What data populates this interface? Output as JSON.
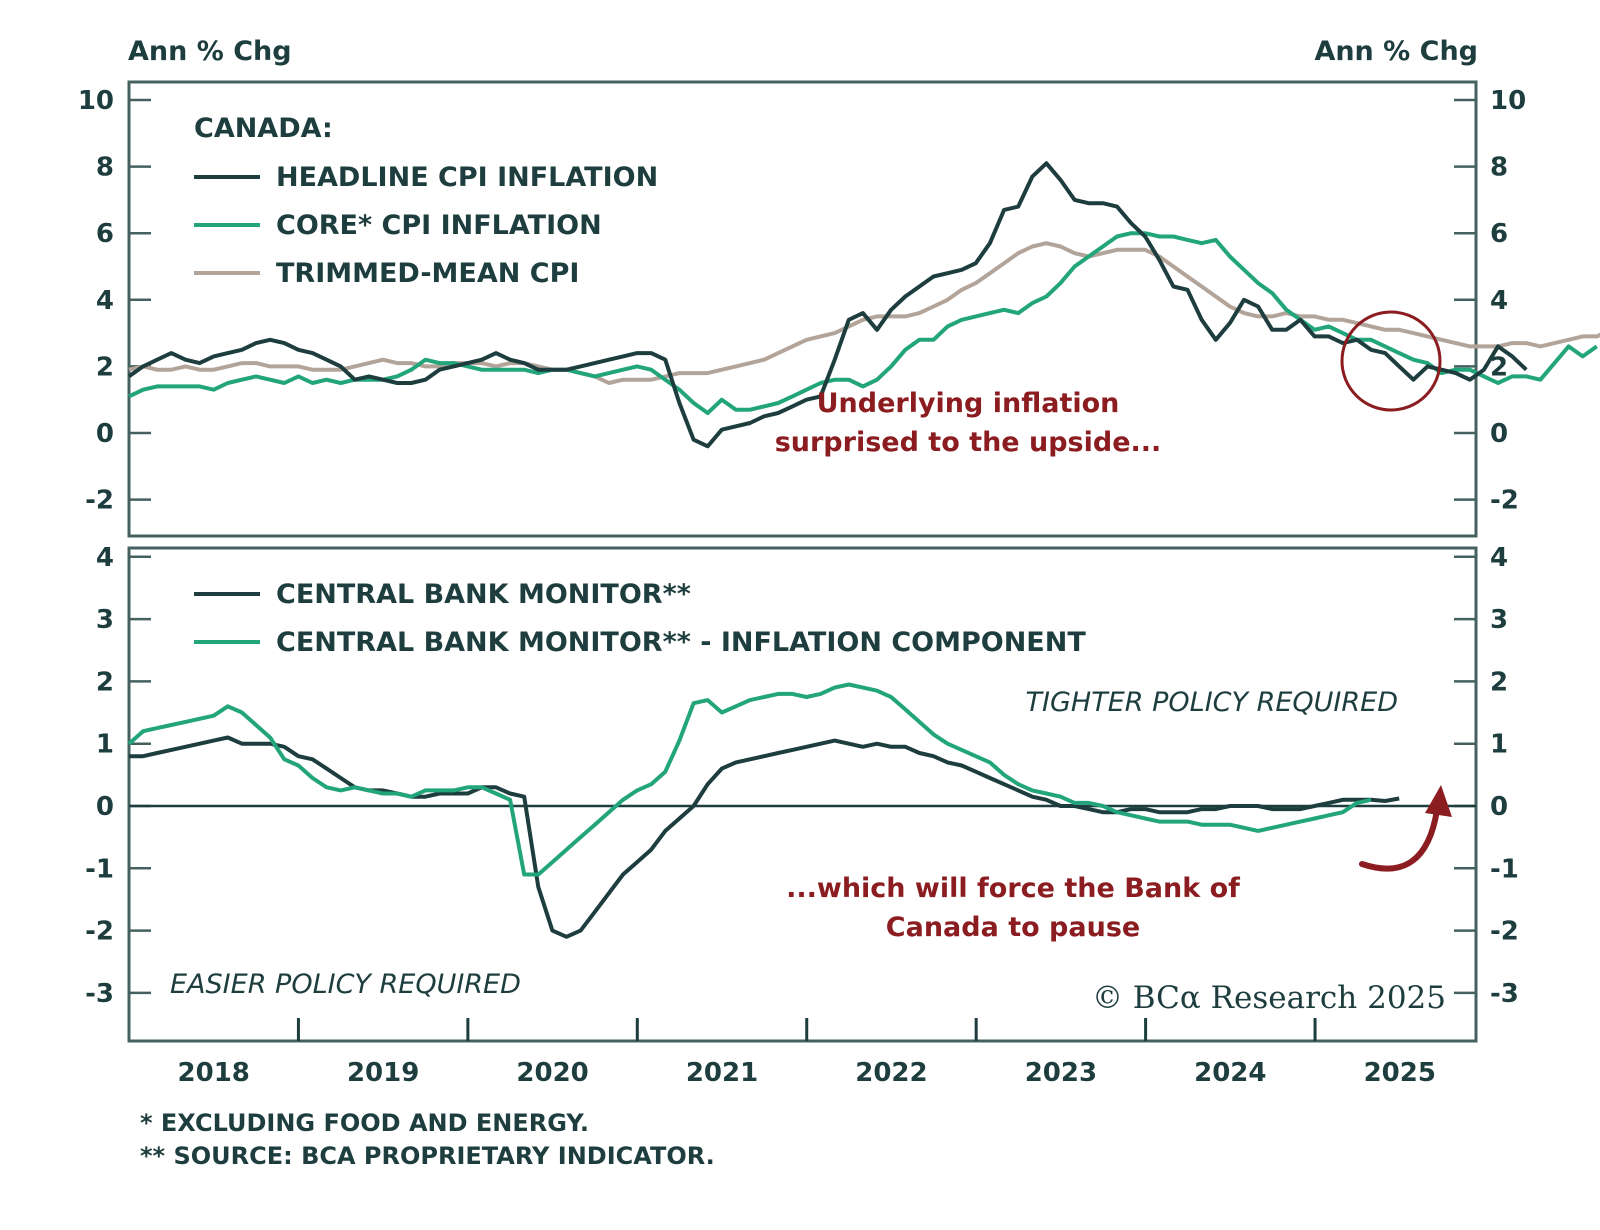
{
  "colors": {
    "headline": "#1d3d3e",
    "core": "#22a57a",
    "trimmed": "#b3a49a",
    "annotation": "#8b1c20",
    "axis": "#1d3d3e"
  },
  "chart_data": [
    {
      "type": "line",
      "panel": "top",
      "title": "CANADA:",
      "ylabel_left": "Ann % Chg",
      "ylabel_right": "Ann % Chg",
      "ylim": [
        -2.8,
        10.5
      ],
      "yticks": [
        -2,
        0,
        2,
        4,
        6,
        8,
        10
      ],
      "ytick_labels": [
        "-2",
        "0",
        "2",
        "4",
        "6",
        "8",
        "10"
      ],
      "grid": false,
      "legend_position": "top-left",
      "x_start": 2017.5,
      "x_step": 0.0833,
      "series": [
        {
          "name": "HEADLINE CPI INFLATION",
          "color_key": "headline",
          "values": [
            1.7,
            2.0,
            2.2,
            2.4,
            2.2,
            2.1,
            2.3,
            2.4,
            2.5,
            2.7,
            2.8,
            2.7,
            2.5,
            2.4,
            2.2,
            2.0,
            1.6,
            1.7,
            1.6,
            1.5,
            1.5,
            1.6,
            1.9,
            2.0,
            2.1,
            2.2,
            2.4,
            2.2,
            2.1,
            1.9,
            1.9,
            1.9,
            2.0,
            2.1,
            2.2,
            2.3,
            2.4,
            2.4,
            2.2,
            0.9,
            -0.2,
            -0.4,
            0.1,
            0.2,
            0.3,
            0.5,
            0.6,
            0.8,
            1.0,
            1.1,
            2.2,
            3.4,
            3.6,
            3.1,
            3.7,
            4.1,
            4.4,
            4.7,
            4.8,
            4.9,
            5.1,
            5.7,
            6.7,
            6.8,
            7.7,
            8.1,
            7.6,
            7.0,
            6.9,
            6.9,
            6.8,
            6.3,
            5.9,
            5.2,
            4.4,
            4.3,
            3.4,
            2.8,
            3.3,
            4.0,
            3.8,
            3.1,
            3.1,
            3.4,
            2.9,
            2.9,
            2.7,
            2.8,
            2.5,
            2.4,
            2.0,
            1.6,
            2.0,
            1.9,
            1.8,
            1.6,
            1.9,
            2.6,
            2.3,
            1.9
          ]
        },
        {
          "name": "CORE* CPI INFLATION",
          "color_key": "core",
          "values": [
            1.1,
            1.3,
            1.4,
            1.4,
            1.4,
            1.4,
            1.3,
            1.5,
            1.6,
            1.7,
            1.6,
            1.5,
            1.7,
            1.5,
            1.6,
            1.5,
            1.6,
            1.6,
            1.6,
            1.7,
            1.9,
            2.2,
            2.1,
            2.1,
            2.0,
            1.9,
            1.9,
            1.9,
            1.9,
            1.8,
            1.9,
            1.9,
            1.8,
            1.7,
            1.8,
            1.9,
            2.0,
            1.9,
            1.6,
            1.3,
            0.9,
            0.6,
            1.0,
            0.7,
            0.7,
            0.8,
            0.9,
            1.1,
            1.3,
            1.5,
            1.6,
            1.6,
            1.4,
            1.6,
            2.0,
            2.5,
            2.8,
            2.8,
            3.2,
            3.4,
            3.5,
            3.6,
            3.7,
            3.6,
            3.9,
            4.1,
            4.5,
            5.0,
            5.3,
            5.6,
            5.9,
            6.0,
            6.0,
            5.9,
            5.9,
            5.8,
            5.7,
            5.8,
            5.3,
            4.9,
            4.5,
            4.2,
            3.7,
            3.4,
            3.1,
            3.2,
            3.0,
            2.8,
            2.8,
            2.6,
            2.4,
            2.2,
            2.1,
            1.8,
            1.9,
            1.9,
            1.7,
            1.5,
            1.7,
            1.7,
            1.6,
            2.1,
            2.6,
            2.3,
            2.6
          ]
        },
        {
          "name": "TRIMMED-MEAN CPI",
          "color_key": "trimmed",
          "values": [
            1.9,
            2.0,
            1.9,
            1.9,
            2.0,
            1.9,
            1.9,
            2.0,
            2.1,
            2.1,
            2.0,
            2.0,
            2.0,
            1.9,
            1.9,
            1.9,
            2.0,
            2.1,
            2.2,
            2.1,
            2.1,
            2.0,
            2.0,
            2.1,
            2.1,
            2.1,
            2.0,
            2.1,
            2.1,
            2.0,
            1.9,
            1.9,
            1.8,
            1.7,
            1.5,
            1.6,
            1.6,
            1.6,
            1.7,
            1.8,
            1.8,
            1.8,
            1.9,
            2.0,
            2.1,
            2.2,
            2.4,
            2.6,
            2.8,
            2.9,
            3.0,
            3.2,
            3.4,
            3.5,
            3.5,
            3.5,
            3.6,
            3.8,
            4.0,
            4.3,
            4.5,
            4.8,
            5.1,
            5.4,
            5.6,
            5.7,
            5.6,
            5.4,
            5.3,
            5.4,
            5.5,
            5.5,
            5.5,
            5.3,
            5.0,
            4.7,
            4.4,
            4.1,
            3.8,
            3.6,
            3.5,
            3.5,
            3.6,
            3.5,
            3.5,
            3.4,
            3.4,
            3.3,
            3.2,
            3.1,
            3.1,
            3.0,
            2.9,
            2.8,
            2.7,
            2.6,
            2.6,
            2.6,
            2.7,
            2.7,
            2.6,
            2.7,
            2.8,
            2.9,
            2.9,
            3.1
          ]
        }
      ],
      "annotations": [
        {
          "text_lines": [
            "Underlying inflation",
            "surprised to the upside..."
          ],
          "color_key": "annotation"
        },
        {
          "type": "circle",
          "around": "latest values (early 2025)"
        }
      ]
    },
    {
      "type": "line",
      "panel": "bottom",
      "ylim": [
        -3.35,
        4.35
      ],
      "yticks": [
        -3,
        -2,
        -1,
        0,
        1,
        2,
        3,
        4
      ],
      "ytick_labels": [
        "-3",
        "-2",
        "-1",
        "0",
        "1",
        "2",
        "3",
        "4"
      ],
      "zero_line": true,
      "grid": false,
      "legend_position": "top-left",
      "x_start": 2017.5,
      "x_step": 0.0833,
      "xticks": [
        2018.5,
        2019.5,
        2020.5,
        2021.5,
        2022.5,
        2023.5,
        2024.5
      ],
      "xlabels": [
        "2018",
        "2019",
        "2020",
        "2021",
        "2022",
        "2023",
        "2024",
        "2025"
      ],
      "series": [
        {
          "name": "CENTRAL BANK MONITOR**",
          "color_key": "headline",
          "values": [
            0.8,
            0.8,
            0.85,
            0.9,
            0.95,
            1.0,
            1.05,
            1.1,
            1.0,
            1.0,
            1.0,
            0.95,
            0.8,
            0.75,
            0.6,
            0.45,
            0.3,
            0.25,
            0.25,
            0.2,
            0.15,
            0.15,
            0.2,
            0.2,
            0.2,
            0.3,
            0.3,
            0.2,
            0.15,
            -1.3,
            -2.0,
            -2.1,
            -2.0,
            -1.7,
            -1.4,
            -1.1,
            -0.9,
            -0.7,
            -0.4,
            -0.2,
            0.0,
            0.35,
            0.6,
            0.7,
            0.75,
            0.8,
            0.85,
            0.9,
            0.95,
            1.0,
            1.05,
            1.0,
            0.95,
            1.0,
            0.95,
            0.95,
            0.85,
            0.8,
            0.7,
            0.65,
            0.55,
            0.45,
            0.35,
            0.25,
            0.15,
            0.1,
            0.0,
            0.0,
            -0.05,
            -0.1,
            -0.1,
            -0.05,
            -0.05,
            -0.1,
            -0.1,
            -0.1,
            -0.05,
            -0.05,
            0.0,
            0.0,
            0.0,
            -0.05,
            -0.05,
            -0.05,
            0.0,
            0.05,
            0.1,
            0.1,
            0.1,
            0.08,
            0.12
          ]
        },
        {
          "name": "CENTRAL BANK MONITOR** - INFLATION COMPONENT",
          "color_key": "core",
          "values": [
            1.0,
            1.2,
            1.25,
            1.3,
            1.35,
            1.4,
            1.45,
            1.6,
            1.5,
            1.3,
            1.1,
            0.75,
            0.65,
            0.45,
            0.3,
            0.25,
            0.3,
            0.25,
            0.2,
            0.2,
            0.15,
            0.25,
            0.25,
            0.25,
            0.3,
            0.3,
            0.2,
            0.1,
            -1.1,
            -1.1,
            -0.9,
            -0.7,
            -0.5,
            -0.3,
            -0.1,
            0.1,
            0.25,
            0.35,
            0.55,
            1.05,
            1.65,
            1.7,
            1.5,
            1.6,
            1.7,
            1.75,
            1.8,
            1.8,
            1.75,
            1.8,
            1.9,
            1.95,
            1.9,
            1.85,
            1.75,
            1.55,
            1.35,
            1.15,
            1.0,
            0.9,
            0.8,
            0.7,
            0.5,
            0.35,
            0.25,
            0.2,
            0.15,
            0.05,
            0.05,
            0.0,
            -0.1,
            -0.15,
            -0.2,
            -0.25,
            -0.25,
            -0.25,
            -0.3,
            -0.3,
            -0.3,
            -0.35,
            -0.4,
            -0.35,
            -0.3,
            -0.25,
            -0.2,
            -0.15,
            -0.1,
            0.05,
            0.1
          ]
        }
      ],
      "region_labels": {
        "top": "TIGHTER POLICY REQUIRED",
        "bottom": "EASIER POLICY REQUIRED"
      },
      "annotations": [
        {
          "text_lines": [
            "...which will force the Bank of",
            "Canada to pause"
          ],
          "color_key": "annotation"
        },
        {
          "type": "arrow",
          "direction": "up",
          "near": "latest values"
        }
      ]
    }
  ],
  "labels": {
    "ylabel_left": "Ann % Chg",
    "ylabel_right": "Ann % Chg",
    "top_title": "CANADA:",
    "top_legend": [
      "HEADLINE CPI INFLATION",
      "CORE* CPI INFLATION",
      "TRIMMED-MEAN CPI"
    ],
    "bottom_legend": [
      "CENTRAL BANK MONITOR**",
      "CENTRAL BANK MONITOR** - INFLATION COMPONENT"
    ],
    "top_annotation": [
      "Underlying inflation",
      "surprised to the upside..."
    ],
    "bottom_annotation": [
      "...which will force the Bank of",
      "Canada to pause"
    ],
    "tighter": "TIGHTER POLICY REQUIRED",
    "easier": "EASIER POLICY REQUIRED",
    "copyright": "© BCα Research 2025",
    "footnotes": [
      "* EXCLUDING FOOD AND ENERGY.",
      "** SOURCE: BCA PROPRIETARY INDICATOR."
    ]
  }
}
